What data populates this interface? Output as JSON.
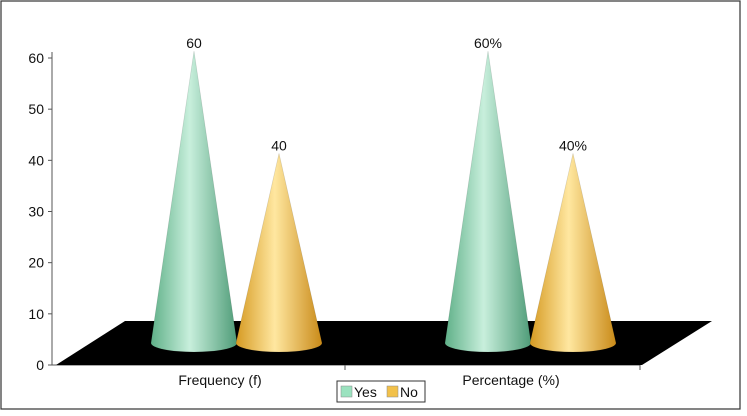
{
  "chart_data": {
    "type": "bar",
    "style": "3d-cone",
    "categories": [
      "Frequency (f)",
      "Percentage (%)"
    ],
    "series": [
      {
        "name": "Yes",
        "values": [
          60,
          60
        ],
        "labels": [
          "60",
          "60%"
        ],
        "color": "#9be2bf"
      },
      {
        "name": "No",
        "values": [
          40,
          40
        ],
        "labels": [
          "40",
          "40%"
        ],
        "color": "#f2c14a"
      }
    ],
    "ylim": [
      0,
      60
    ],
    "yticks": [
      "0",
      "10",
      "20",
      "30",
      "40",
      "50",
      "60"
    ],
    "floor_color": "#000000",
    "legend_position": "bottom-center",
    "grid": false
  }
}
